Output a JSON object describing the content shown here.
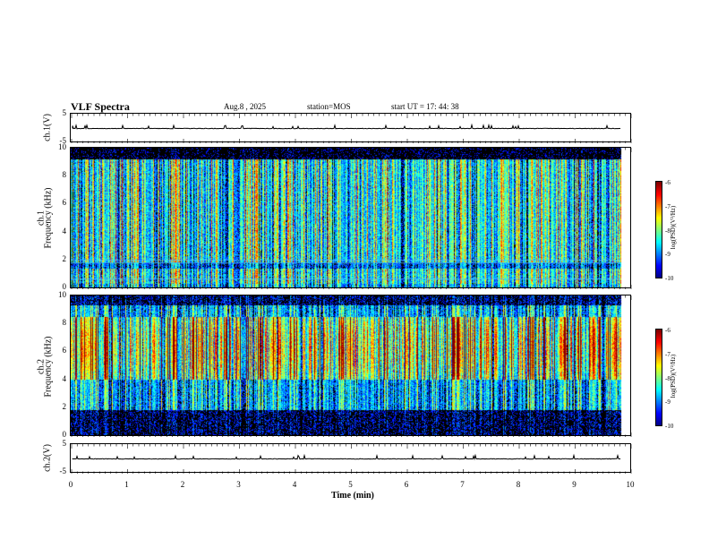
{
  "header": {
    "title": "VLF Spectra",
    "date": "Aug.8 , 2025",
    "station": "station=MOS",
    "start_ut": "start UT = 17: 44: 38"
  },
  "chart_data": [
    {
      "type": "line",
      "name": "ch1-waveform",
      "ylabel": "ch.1(V)",
      "ylim": [
        -5,
        5
      ],
      "yticks": [
        "5",
        "-5"
      ],
      "baseline": 0
    },
    {
      "type": "heatmap",
      "name": "ch1-spectrogram",
      "ylabel_line1": "ch.1",
      "ylabel_line2": "Frequency (kHz)",
      "ylim": [
        0,
        10
      ],
      "yticks": [
        "10",
        "8",
        "6",
        "4",
        "2",
        "0"
      ],
      "colorbar": {
        "label": "log(PSD)(V²/Hz)",
        "range": [
          -10,
          -6
        ],
        "ticks": [
          "-6",
          "-7",
          "-8",
          "-9",
          "-10"
        ]
      }
    },
    {
      "type": "heatmap",
      "name": "ch2-spectrogram",
      "ylabel_line1": "ch.2",
      "ylabel_line2": "Frequency (kHz)",
      "ylim": [
        0,
        10
      ],
      "yticks": [
        "10",
        "8",
        "6",
        "4",
        "2",
        "0"
      ],
      "colorbar": {
        "label": "log(PSD)(V²/Hz)",
        "range": [
          -10,
          -6
        ],
        "ticks": [
          "-6",
          "-7",
          "-8",
          "-9",
          "-10"
        ]
      }
    },
    {
      "type": "line",
      "name": "ch2-waveform",
      "ylabel": "ch.2(V)",
      "ylim": [
        -5,
        5
      ],
      "yticks": [
        "5",
        "-5"
      ],
      "baseline": 0
    }
  ],
  "xaxis": {
    "label": "Time (min)",
    "range": [
      0,
      10
    ],
    "ticks": [
      "0",
      "1",
      "2",
      "3",
      "4",
      "5",
      "6",
      "7",
      "8",
      "9",
      "10"
    ],
    "data_end": 9.83
  }
}
